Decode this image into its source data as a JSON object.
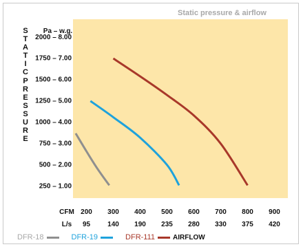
{
  "chart_data": {
    "type": "line",
    "title": "Static pressure & airflow",
    "ylabel": "STATIC PRESSURE",
    "ylabel_letters": [
      "S",
      "T",
      "A",
      "T",
      "I",
      "C",
      "P",
      "R",
      "E",
      "S",
      "S",
      "U",
      "R",
      "E"
    ],
    "y_unit_label": "Pa – w.g.",
    "x_unit_labels": [
      "CFM",
      "L/s"
    ],
    "xlim": [
      150,
      950
    ],
    "ylim": [
      100,
      2200
    ],
    "x_ticks_cfm": [
      200,
      300,
      400,
      500,
      600,
      700,
      800,
      900
    ],
    "x_ticks_ls": [
      "95",
      "140",
      "190",
      "235",
      "280",
      "330",
      "375",
      "420"
    ],
    "y_ticks": [
      250,
      500,
      750,
      1000,
      1250,
      1500,
      1750,
      2000
    ],
    "y_tick_labels": [
      "250 – 1.00",
      "500 – 2.00",
      "750 – 3.00",
      "1000 – 4.00",
      "1250 – 5.00",
      "1500 – 6.00",
      "1750 – 7.00",
      "2000 – 8.00"
    ],
    "grid": false,
    "background": "#fde6a9",
    "series": [
      {
        "name": "DFR-18",
        "color": "#8f8f8f",
        "x": [
          160,
          200,
          240,
          285
        ],
        "y": [
          860,
          650,
          450,
          250
        ]
      },
      {
        "name": "DFR-19",
        "color": "#1ea2dc",
        "x": [
          215,
          300,
          400,
          500,
          545
        ],
        "y": [
          1240,
          1050,
          810,
          490,
          250
        ]
      },
      {
        "name": "DFR-111",
        "color": "#a8382a",
        "x": [
          300,
          400,
          500,
          600,
          700,
          800
        ],
        "y": [
          1740,
          1530,
          1310,
          1070,
          740,
          250
        ]
      }
    ],
    "legend": {
      "placement": "bottom",
      "airflow_label": "AIRFLOW",
      "airflow_color": "#a8382a"
    }
  }
}
